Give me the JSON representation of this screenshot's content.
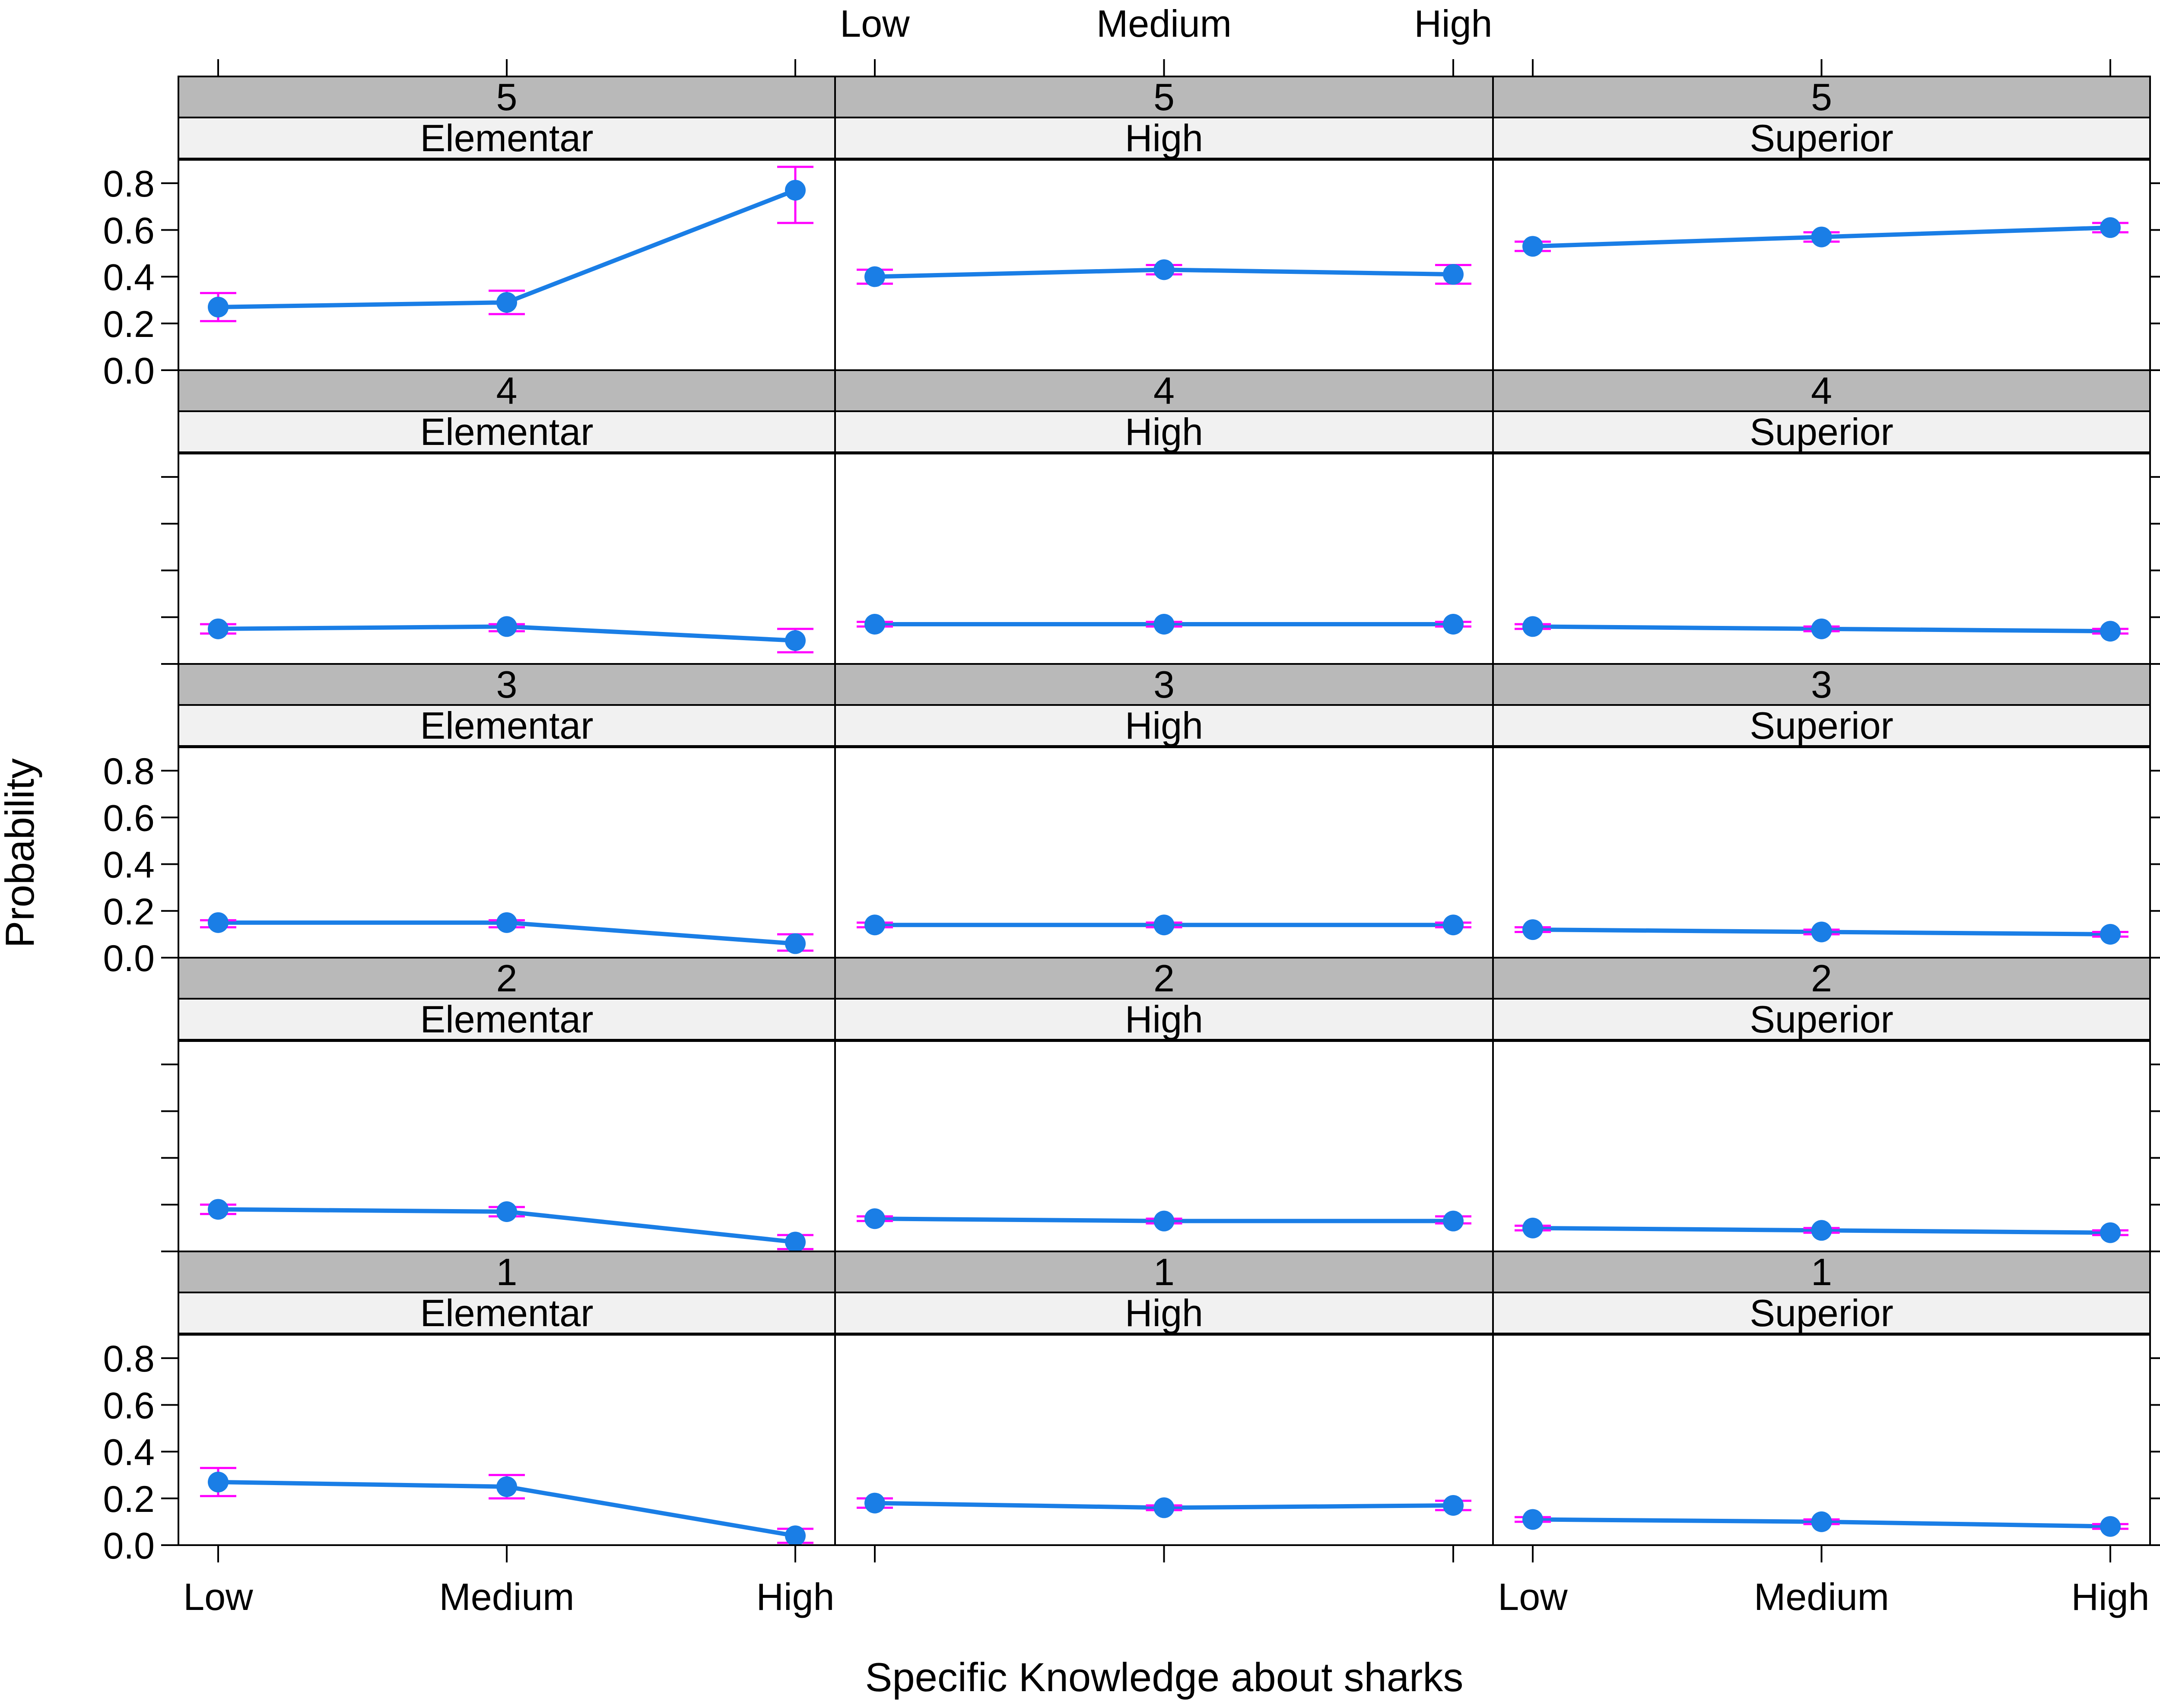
{
  "chart_data": {
    "type": "line",
    "layout": "lattice 3 columns x 5 rows, effect plot with error bars",
    "xlabel": "Specific Knowledge about sharks",
    "ylabel": "Probability",
    "x_levels": [
      "Low",
      "Medium",
      "High"
    ],
    "y_ticks": [
      "0.0",
      "0.2",
      "0.4",
      "0.6",
      "0.8"
    ],
    "ylim": [
      0,
      0.9
    ],
    "grid": false,
    "colors": {
      "line": "#1a7ee6",
      "point": "#1a7ee6",
      "error_bar": "#ff00ff",
      "strip_top": "#b9b9b9",
      "strip_bottom": "#f1f1f1",
      "frame": "#000000"
    },
    "rows": [
      {
        "label": "5",
        "panels": [
          {
            "group": "Elementar",
            "values": [
              0.27,
              0.29,
              0.77
            ],
            "lower": [
              0.21,
              0.24,
              0.63
            ],
            "upper": [
              0.33,
              0.34,
              0.87
            ]
          },
          {
            "group": "High",
            "values": [
              0.4,
              0.43,
              0.41
            ],
            "lower": [
              0.37,
              0.41,
              0.37
            ],
            "upper": [
              0.43,
              0.45,
              0.45
            ]
          },
          {
            "group": "Superior",
            "values": [
              0.53,
              0.57,
              0.61
            ],
            "lower": [
              0.51,
              0.55,
              0.59
            ],
            "upper": [
              0.55,
              0.59,
              0.63
            ]
          }
        ]
      },
      {
        "label": "4",
        "panels": [
          {
            "group": "Elementar",
            "values": [
              0.15,
              0.16,
              0.1
            ],
            "lower": [
              0.13,
              0.14,
              0.05
            ],
            "upper": [
              0.17,
              0.17,
              0.15
            ]
          },
          {
            "group": "High",
            "values": [
              0.17,
              0.17,
              0.17
            ],
            "lower": [
              0.16,
              0.16,
              0.16
            ],
            "upper": [
              0.18,
              0.18,
              0.18
            ]
          },
          {
            "group": "Superior",
            "values": [
              0.16,
              0.15,
              0.14
            ],
            "lower": [
              0.15,
              0.14,
              0.13
            ],
            "upper": [
              0.17,
              0.16,
              0.15
            ]
          }
        ]
      },
      {
        "label": "3",
        "panels": [
          {
            "group": "Elementar",
            "values": [
              0.15,
              0.15,
              0.06
            ],
            "lower": [
              0.13,
              0.13,
              0.03
            ],
            "upper": [
              0.16,
              0.16,
              0.1
            ]
          },
          {
            "group": "High",
            "values": [
              0.14,
              0.14,
              0.14
            ],
            "lower": [
              0.13,
              0.13,
              0.13
            ],
            "upper": [
              0.15,
              0.15,
              0.15
            ]
          },
          {
            "group": "Superior",
            "values": [
              0.12,
              0.11,
              0.1
            ],
            "lower": [
              0.11,
              0.1,
              0.09
            ],
            "upper": [
              0.13,
              0.12,
              0.11
            ]
          }
        ]
      },
      {
        "label": "2",
        "panels": [
          {
            "group": "Elementar",
            "values": [
              0.18,
              0.17,
              0.04
            ],
            "lower": [
              0.16,
              0.15,
              0.01
            ],
            "upper": [
              0.2,
              0.19,
              0.07
            ]
          },
          {
            "group": "High",
            "values": [
              0.14,
              0.13,
              0.13
            ],
            "lower": [
              0.13,
              0.12,
              0.12
            ],
            "upper": [
              0.15,
              0.14,
              0.15
            ]
          },
          {
            "group": "Superior",
            "values": [
              0.1,
              0.09,
              0.08
            ],
            "lower": [
              0.09,
              0.08,
              0.07
            ],
            "upper": [
              0.11,
              0.1,
              0.09
            ]
          }
        ]
      },
      {
        "label": "1",
        "panels": [
          {
            "group": "Elementar",
            "values": [
              0.27,
              0.25,
              0.04
            ],
            "lower": [
              0.21,
              0.2,
              0.01
            ],
            "upper": [
              0.33,
              0.3,
              0.07
            ]
          },
          {
            "group": "High",
            "values": [
              0.18,
              0.16,
              0.17
            ],
            "lower": [
              0.16,
              0.15,
              0.15
            ],
            "upper": [
              0.2,
              0.17,
              0.19
            ]
          },
          {
            "group": "Superior",
            "values": [
              0.11,
              0.1,
              0.08
            ],
            "lower": [
              0.1,
              0.09,
              0.07
            ],
            "upper": [
              0.12,
              0.11,
              0.09
            ]
          }
        ]
      }
    ]
  }
}
